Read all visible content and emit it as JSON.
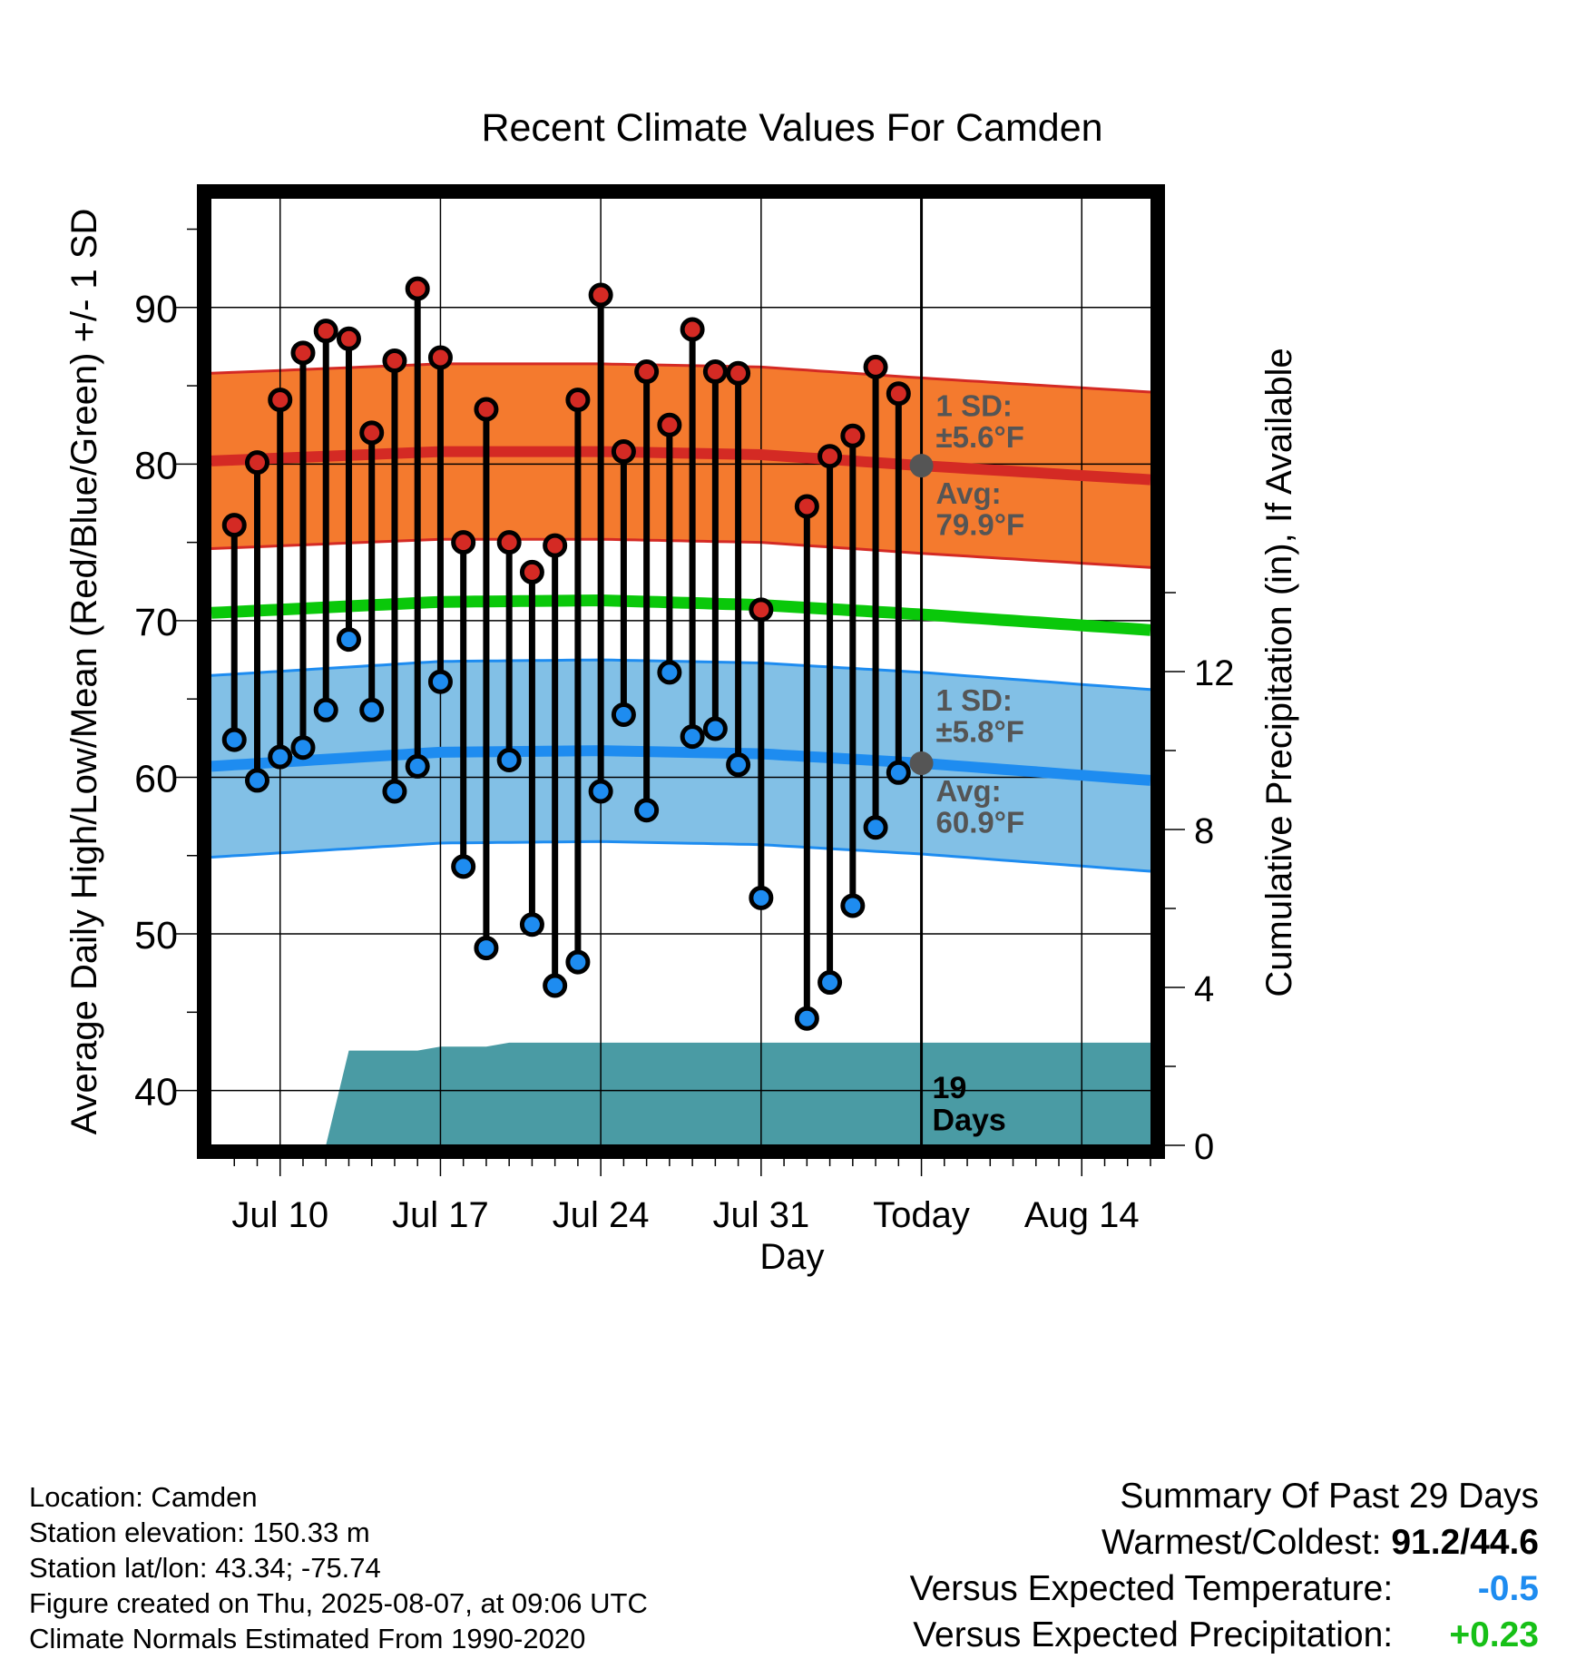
{
  "chart_data": {
    "type": "line",
    "title": "Recent Climate Values For Camden",
    "xlabel": "Day",
    "ylabel": "Average Daily High/Low/Mean (Red/Blue/Green) +/- 1 SD",
    "y2label": "Cumulative Precipitation (in), If Available",
    "x_ticks": [
      "Jul 10",
      "Jul 17",
      "Jul 24",
      "Jul 31",
      "Today",
      "Aug 14"
    ],
    "x_range": [
      "Jul 07",
      "Aug 17"
    ],
    "ylim": [
      36.5,
      97
    ],
    "y_ticks": [
      40,
      50,
      60,
      70,
      80,
      90
    ],
    "y2lim": [
      0,
      24
    ],
    "y2_ticks": [
      0,
      4,
      8,
      12
    ],
    "today": "Aug 07",
    "daily": {
      "dates": [
        "Jul 08",
        "Jul 09",
        "Jul 10",
        "Jul 11",
        "Jul 12",
        "Jul 13",
        "Jul 14",
        "Jul 15",
        "Jul 16",
        "Jul 17",
        "Jul 18",
        "Jul 19",
        "Jul 20",
        "Jul 21",
        "Jul 22",
        "Jul 23",
        "Jul 24",
        "Jul 25",
        "Jul 26",
        "Jul 27",
        "Jul 28",
        "Jul 29",
        "Jul 30",
        "Jul 31",
        "Aug 01",
        "Aug 02",
        "Aug 03",
        "Aug 04",
        "Aug 05",
        "Aug 06"
      ],
      "high": [
        76.1,
        80.1,
        84.1,
        87.1,
        88.5,
        88.0,
        82.0,
        86.6,
        91.2,
        86.8,
        75.0,
        83.5,
        75.0,
        73.1,
        74.8,
        84.1,
        90.8,
        80.8,
        85.9,
        82.5,
        88.6,
        85.9,
        85.8,
        70.7,
        null,
        77.3,
        80.5,
        81.8,
        86.2,
        84.5
      ],
      "low": [
        62.4,
        59.8,
        61.3,
        61.9,
        64.3,
        68.8,
        64.3,
        59.1,
        60.7,
        66.1,
        54.3,
        49.1,
        61.1,
        50.6,
        46.7,
        48.2,
        59.1,
        64.0,
        57.9,
        66.7,
        62.6,
        63.1,
        60.8,
        52.3,
        null,
        44.6,
        46.9,
        51.8,
        56.8,
        60.3
      ]
    },
    "normals": {
      "dates": [
        "Jul 07",
        "Jul 17",
        "Jul 24",
        "Jul 31",
        "Aug 07",
        "Aug 17"
      ],
      "avg_high": [
        80.2,
        80.8,
        80.8,
        80.6,
        79.9,
        79.0
      ],
      "high_sd": 5.6,
      "avg_low": [
        60.7,
        61.6,
        61.7,
        61.5,
        60.9,
        59.8
      ],
      "low_sd": 5.8,
      "avg_mean": [
        70.5,
        71.2,
        71.3,
        71.0,
        70.4,
        69.4
      ]
    },
    "precip": {
      "dates": [
        "Jul 11",
        "Jul 12",
        "Jul 13",
        "Jul 14",
        "Jul 15",
        "Jul 16",
        "Jul 17",
        "Jul 18",
        "Jul 19",
        "Jul 20",
        "Aug 17"
      ],
      "cumulative": [
        0.0,
        0.0,
        2.4,
        2.4,
        2.4,
        2.4,
        2.5,
        2.5,
        2.5,
        2.6,
        2.6
      ]
    },
    "annotations": {
      "high_sd_label": [
        "1 SD:",
        "±5.6°F"
      ],
      "high_avg_label": [
        "Avg:",
        "79.9°F"
      ],
      "low_sd_label": [
        "1 SD:",
        "±5.8°F"
      ],
      "low_avg_label": [
        "Avg:",
        "60.9°F"
      ],
      "days_label": [
        "19",
        "Days"
      ]
    },
    "colors": {
      "high_band": "#f47a2e",
      "high_line": "#d42a24",
      "mean_line": "#0ac80a",
      "low_band": "#82c0e6",
      "low_line": "#1e8cf0",
      "precip": "#4a9ba4",
      "high_dot": "#d42a24",
      "low_dot": "#1e8cf0",
      "annotation": "#555555"
    }
  },
  "footer": {
    "location": "Location: Camden",
    "elevation": "Station elevation: 150.33 m",
    "latlon": "Station lat/lon: 43.34; -75.74",
    "created": "Figure created on Thu, 2025-08-07, at 09:06 UTC",
    "normals": "Climate Normals Estimated From 1990-2020"
  },
  "summary": {
    "heading": "Summary Of Past 29 Days",
    "warm_cold_label": "Warmest/Coldest:",
    "warm_cold_value": "91.2/44.6",
    "temp_label": "Versus Expected Temperature:",
    "temp_value": "-0.5",
    "temp_color": "#1e8cf0",
    "precip_label": "Versus Expected Precipitation:",
    "precip_value": "+0.23",
    "precip_color": "#17c017"
  }
}
